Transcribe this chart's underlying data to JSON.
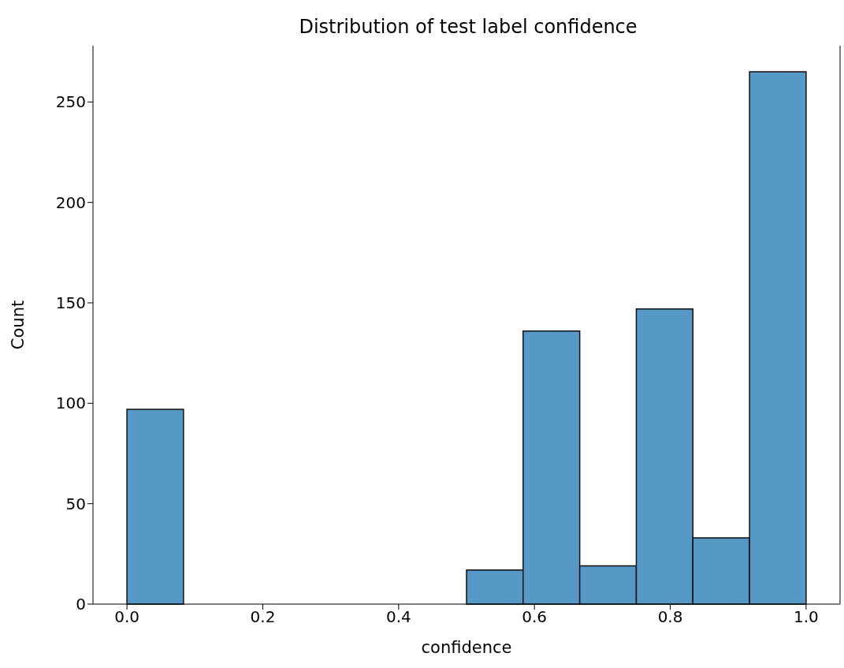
{
  "chart_data": {
    "type": "histogram",
    "title": "Distribution of test label confidence",
    "xlabel": "confidence",
    "ylabel": "Count",
    "bins": [
      0,
      0.0833,
      0.1667,
      0.25,
      0.3333,
      0.4167,
      0.5,
      0.5833,
      0.6667,
      0.75,
      0.8333,
      0.9167,
      1
    ],
    "values": [
      97,
      0,
      0,
      0,
      0,
      0,
      17,
      136,
      19,
      147,
      33,
      265
    ],
    "color": "#5698c6",
    "xlim": [
      -0.05,
      1.05
    ],
    "xticks": [
      {
        "value": 0,
        "label": "0.0"
      },
      {
        "value": 0.2,
        "label": "0.2"
      },
      {
        "value": 0.4,
        "label": "0.4"
      },
      {
        "value": 0.6,
        "label": "0.6"
      },
      {
        "value": 0.8,
        "label": "0.8"
      },
      {
        "value": 1,
        "label": "1.0"
      }
    ],
    "ylim": [
      0,
      278
    ],
    "yticks": [
      0,
      50,
      100,
      150,
      200,
      250
    ],
    "grid": false
  }
}
